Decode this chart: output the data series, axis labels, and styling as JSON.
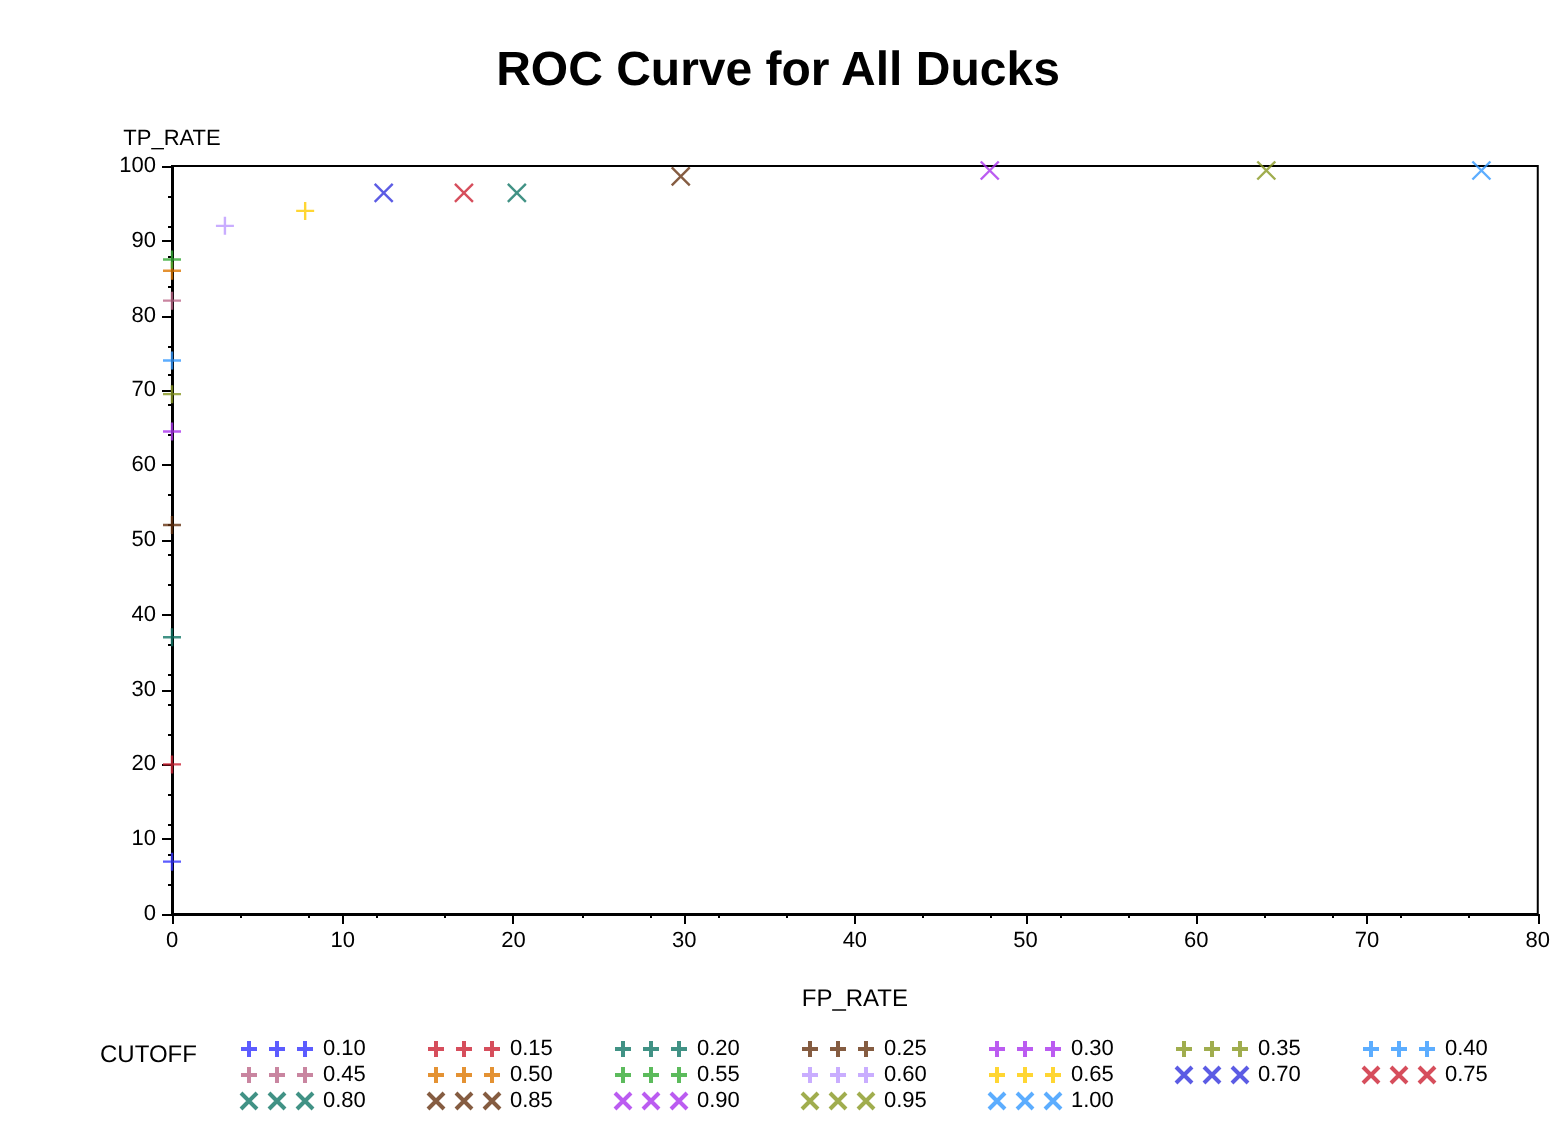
{
  "chart_data": {
    "type": "scatter",
    "title": "ROC Curve for All Ducks",
    "xlabel": "FP_RATE",
    "ylabel": "TP_RATE",
    "legend_title": "CUTOFF",
    "xlim": [
      0,
      80
    ],
    "xticks": [
      0,
      10,
      20,
      30,
      40,
      50,
      60,
      70,
      80
    ],
    "ylim": [
      0,
      100
    ],
    "yticks": [
      0,
      10,
      20,
      30,
      40,
      50,
      60,
      70,
      80,
      90,
      100
    ],
    "grid": false,
    "legend": "bottom",
    "series": [
      {
        "name": "0.10",
        "color": "#3333ff",
        "marker": "plus",
        "x": [
          0
        ],
        "values": [
          7
        ]
      },
      {
        "name": "0.15",
        "color": "#cc2233",
        "marker": "plus",
        "x": [
          0
        ],
        "values": [
          20
        ]
      },
      {
        "name": "0.20",
        "color": "#117766",
        "marker": "plus",
        "x": [
          0
        ],
        "values": [
          37
        ]
      },
      {
        "name": "0.25",
        "color": "#663311",
        "marker": "plus",
        "x": [
          0
        ],
        "values": [
          52
        ]
      },
      {
        "name": "0.30",
        "color": "#aa33ee",
        "marker": "plus",
        "x": [
          0
        ],
        "values": [
          64.5
        ]
      },
      {
        "name": "0.35",
        "color": "#889922",
        "marker": "plus",
        "x": [
          0
        ],
        "values": [
          69.5
        ]
      },
      {
        "name": "0.40",
        "color": "#3399ff",
        "marker": "plus",
        "x": [
          0
        ],
        "values": [
          74
        ]
      },
      {
        "name": "0.45",
        "color": "#bb6688",
        "marker": "plus",
        "x": [
          0
        ],
        "values": [
          82
        ]
      },
      {
        "name": "0.50",
        "color": "#dd7700",
        "marker": "plus",
        "x": [
          0
        ],
        "values": [
          86
        ]
      },
      {
        "name": "0.55",
        "color": "#33aa33",
        "marker": "plus",
        "x": [
          0
        ],
        "values": [
          87.5
        ]
      },
      {
        "name": "0.60",
        "color": "#bb99ff",
        "marker": "plus",
        "x": [
          3.1
        ],
        "values": [
          92
        ]
      },
      {
        "name": "0.65",
        "color": "#ffcc00",
        "marker": "plus",
        "x": [
          7.8
        ],
        "values": [
          94
        ]
      },
      {
        "name": "0.70",
        "color": "#3333dd",
        "marker": "cross",
        "x": [
          12.4
        ],
        "values": [
          96.4
        ]
      },
      {
        "name": "0.75",
        "color": "#cc2233",
        "marker": "cross",
        "x": [
          17.1
        ],
        "values": [
          96.4
        ]
      },
      {
        "name": "0.80",
        "color": "#117766",
        "marker": "cross",
        "x": [
          20.2
        ],
        "values": [
          96.4
        ]
      },
      {
        "name": "0.85",
        "color": "#663311",
        "marker": "cross",
        "x": [
          29.8
        ],
        "values": [
          98.6
        ]
      },
      {
        "name": "0.90",
        "color": "#aa33ee",
        "marker": "cross",
        "x": [
          47.9
        ],
        "values": [
          99.4
        ]
      },
      {
        "name": "0.95",
        "color": "#889922",
        "marker": "cross",
        "x": [
          64.1
        ],
        "values": [
          99.4
        ]
      },
      {
        "name": "1.00",
        "color": "#3399ff",
        "marker": "cross",
        "x": [
          76.7
        ],
        "values": [
          99.4
        ]
      }
    ]
  }
}
